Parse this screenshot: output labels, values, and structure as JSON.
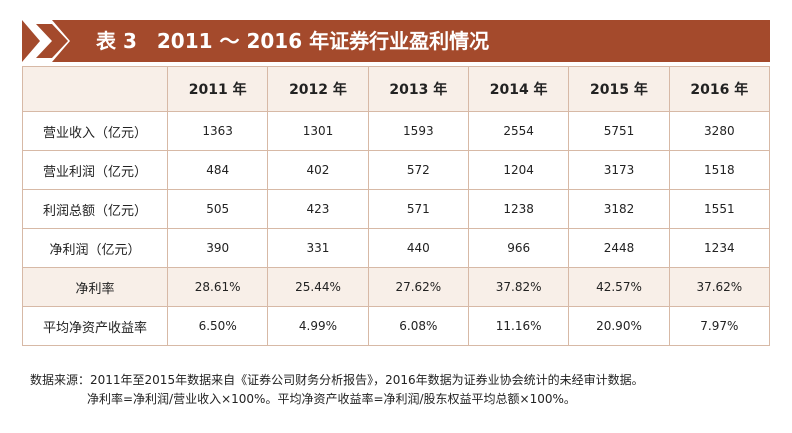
{
  "banner": {
    "title": "表 3　2011 ～ 2016 年证券行业盈利情况",
    "color": "#a44a2c"
  },
  "table": {
    "headers": [
      "",
      "2011 年",
      "2012 年",
      "2013 年",
      "2014 年",
      "2015 年",
      "2016 年"
    ],
    "rows": [
      {
        "label": "营业收入（亿元）",
        "values": [
          "1363",
          "1301",
          "1593",
          "2554",
          "5751",
          "3280"
        ]
      },
      {
        "label": "营业利润（亿元）",
        "values": [
          "484",
          "402",
          "572",
          "1204",
          "3173",
          "1518"
        ]
      },
      {
        "label": "利润总额（亿元）",
        "values": [
          "505",
          "423",
          "571",
          "1238",
          "3182",
          "1551"
        ]
      },
      {
        "label": "净利润（亿元）",
        "values": [
          "390",
          "331",
          "440",
          "966",
          "2448",
          "1234"
        ]
      },
      {
        "label": "净利率",
        "values": [
          "28.61%",
          "25.44%",
          "27.62%",
          "37.82%",
          "42.57%",
          "37.62%"
        ]
      },
      {
        "label": "平均净资产收益率",
        "values": [
          "6.50%",
          "4.99%",
          "6.08%",
          "11.16%",
          "20.90%",
          "7.97%"
        ]
      }
    ]
  },
  "notes": {
    "line1": "数据来源：2011年至2015年数据来自《证券公司财务分析报告》，2016年数据为证券业协会统计的未经审计数据。",
    "line2": "净利率=净利润/营业收入×100%。平均净资产收益率=净利润/股东权益平均总额×100%。"
  }
}
